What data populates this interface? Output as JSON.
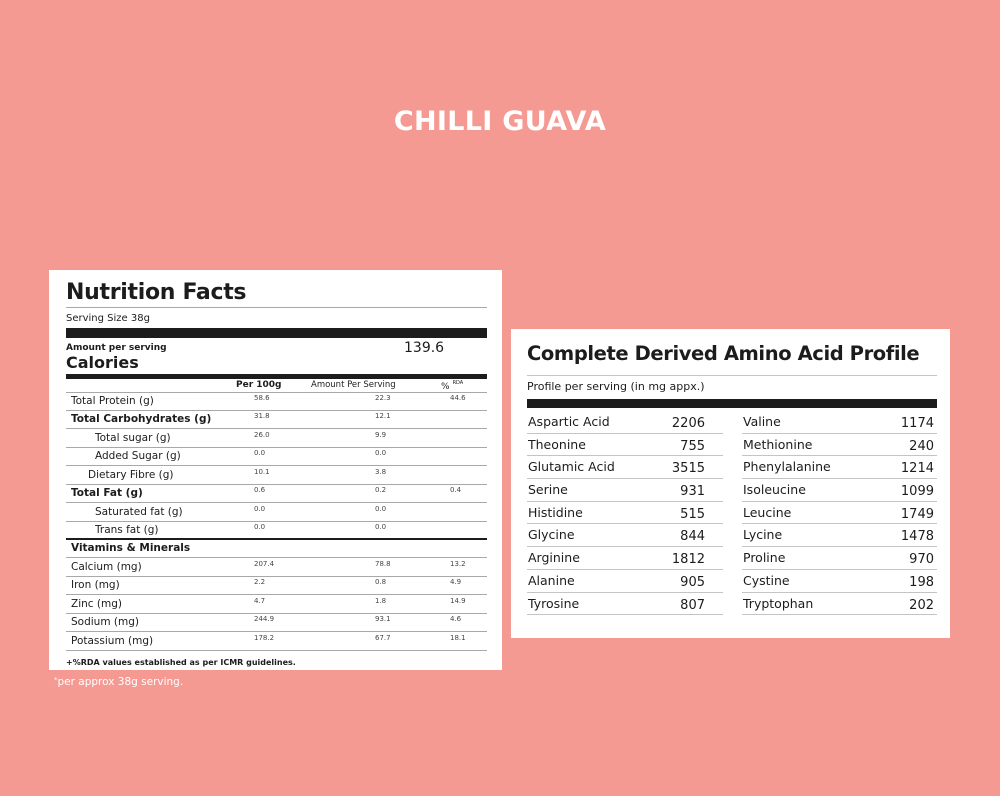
{
  "page": {
    "title": "CHILLI GUAVA",
    "background_color": "#f59a93",
    "outside_note": "per approx 38g serving.",
    "outside_note_marker": "*"
  },
  "nutrition_facts": {
    "title": "Nutrition Facts",
    "serving_size": "Serving Size 38g",
    "amount_per_serving_label": "Amount per serving",
    "calories_label": "Calories",
    "calories_value": "139.6",
    "columns": {
      "per_100g": "Per 100g",
      "per_serving": "Amount Per Serving",
      "rda": "%",
      "rda_sup": "RDA"
    },
    "rows": [
      {
        "label": "Total Protein (g)",
        "style": "normal",
        "per_100g": "58.6",
        "per_serving": "22.3",
        "rda": "44.6"
      },
      {
        "label": "Total Carbohydrates (g)",
        "style": "bold",
        "per_100g": "31.8",
        "per_serving": "12.1",
        "rda": ""
      },
      {
        "label": "Total sugar (g)",
        "style": "indent1",
        "per_100g": "26.0",
        "per_serving": "9.9",
        "rda": ""
      },
      {
        "label": "Added Sugar (g)",
        "style": "indent1",
        "per_100g": "0.0",
        "per_serving": "0.0",
        "rda": ""
      },
      {
        "label": "Dietary Fibre (g)",
        "style": "indent2",
        "per_100g": "10.1",
        "per_serving": "3.8",
        "rda": ""
      },
      {
        "label": "Total Fat (g)",
        "style": "bold",
        "per_100g": "0.6",
        "per_serving": "0.2",
        "rda": "0.4"
      },
      {
        "label": "Saturated fat (g)",
        "style": "indent1",
        "per_100g": "0.0",
        "per_serving": "0.0",
        "rda": ""
      },
      {
        "label": "Trans fat (g)",
        "style": "indent1",
        "per_100g": "0.0",
        "per_serving": "0.0",
        "rda": ""
      }
    ],
    "vitamins_header": "Vitamins & Minerals",
    "minerals": [
      {
        "label": "Calcium (mg)",
        "per_100g": "207.4",
        "per_serving": "78.8",
        "rda": "13.2"
      },
      {
        "label": "Iron (mg)",
        "per_100g": "2.2",
        "per_serving": "0.8",
        "rda": "4.9"
      },
      {
        "label": "Zinc (mg)",
        "per_100g": "4.7",
        "per_serving": "1.8",
        "rda": "14.9"
      },
      {
        "label": "Sodium (mg)",
        "per_100g": "244.9",
        "per_serving": "93.1",
        "rda": "4.6"
      },
      {
        "label": "Potassium (mg)",
        "per_100g": "178.2",
        "per_serving": "67.7",
        "rda": "18.1"
      }
    ],
    "footnote": "+%RDA values established as per ICMR guidelines."
  },
  "amino_profile": {
    "title": "Complete Derived Amino Acid Profile",
    "subtitle": "Profile per serving (in mg appx.)",
    "left": [
      {
        "name": "Aspartic Acid",
        "value": "2206"
      },
      {
        "name": "Theonine",
        "value": "755"
      },
      {
        "name": "Glutamic Acid",
        "value": "3515"
      },
      {
        "name": "Serine",
        "value": "931"
      },
      {
        "name": "Histidine",
        "value": "515"
      },
      {
        "name": "Glycine",
        "value": "844"
      },
      {
        "name": "Arginine",
        "value": "1812"
      },
      {
        "name": "Alanine",
        "value": "905"
      },
      {
        "name": "Tyrosine",
        "value": "807"
      }
    ],
    "right": [
      {
        "name": "Valine",
        "value": "1174"
      },
      {
        "name": "Methionine",
        "value": "240"
      },
      {
        "name": "Phenylalanine",
        "value": "1214"
      },
      {
        "name": "Isoleucine",
        "value": "1099"
      },
      {
        "name": "Leucine",
        "value": "1749"
      },
      {
        "name": "Lycine",
        "value": "1478"
      },
      {
        "name": "Proline",
        "value": "970"
      },
      {
        "name": "Cystine",
        "value": "198"
      },
      {
        "name": "Tryptophan",
        "value": "202"
      }
    ]
  }
}
